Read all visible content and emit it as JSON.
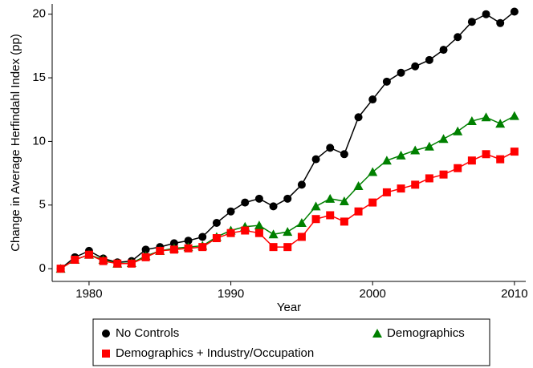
{
  "chart_data": {
    "type": "line",
    "x_label": "Year",
    "y_label": "Change in Average Herfindahl Index (pp)",
    "x": [
      1978,
      1979,
      1980,
      1981,
      1982,
      1983,
      1984,
      1985,
      1986,
      1987,
      1988,
      1989,
      1990,
      1991,
      1992,
      1993,
      1994,
      1995,
      1996,
      1997,
      1998,
      1999,
      2000,
      2001,
      2002,
      2003,
      2004,
      2005,
      2006,
      2007,
      2008,
      2009,
      2010
    ],
    "series": [
      {
        "name": "No Controls",
        "color": "#000000",
        "marker": "circle",
        "values": [
          0,
          0.9,
          1.4,
          0.8,
          0.5,
          0.6,
          1.5,
          1.7,
          2.0,
          2.2,
          2.5,
          3.6,
          4.5,
          5.2,
          5.5,
          4.9,
          5.5,
          6.6,
          8.6,
          9.5,
          9.0,
          11.9,
          13.3,
          14.7,
          15.4,
          15.9,
          16.4,
          17.2,
          18.2,
          19.4,
          20.0,
          19.3,
          20.2
        ]
      },
      {
        "name": "Demographics",
        "color": "#008000",
        "marker": "triangle",
        "values": [
          0,
          0.7,
          1.1,
          0.7,
          0.4,
          0.45,
          1.0,
          1.4,
          1.6,
          1.7,
          1.8,
          2.5,
          3.0,
          3.3,
          3.4,
          2.7,
          2.9,
          3.6,
          4.9,
          5.5,
          5.3,
          6.5,
          7.6,
          8.5,
          8.9,
          9.3,
          9.6,
          10.2,
          10.8,
          11.6,
          11.9,
          11.4,
          12.0
        ]
      },
      {
        "name": "Demographics + Industry/Occupation",
        "color": "#ff0000",
        "marker": "square",
        "values": [
          0,
          0.7,
          1.1,
          0.6,
          0.4,
          0.4,
          0.9,
          1.4,
          1.5,
          1.6,
          1.7,
          2.4,
          2.8,
          3.0,
          2.8,
          1.7,
          1.7,
          2.5,
          3.9,
          4.2,
          3.7,
          4.5,
          5.2,
          6.0,
          6.3,
          6.6,
          7.1,
          7.4,
          7.9,
          8.5,
          9.0,
          8.6,
          9.2
        ]
      }
    ],
    "xlim": [
      1977.4,
      2010.8
    ],
    "xticks": [
      1980,
      1990,
      2000,
      2010
    ],
    "ylim": [
      -1.0,
      20.8
    ],
    "yticks": [
      0,
      5,
      10,
      15,
      20
    ],
    "grid": false
  }
}
